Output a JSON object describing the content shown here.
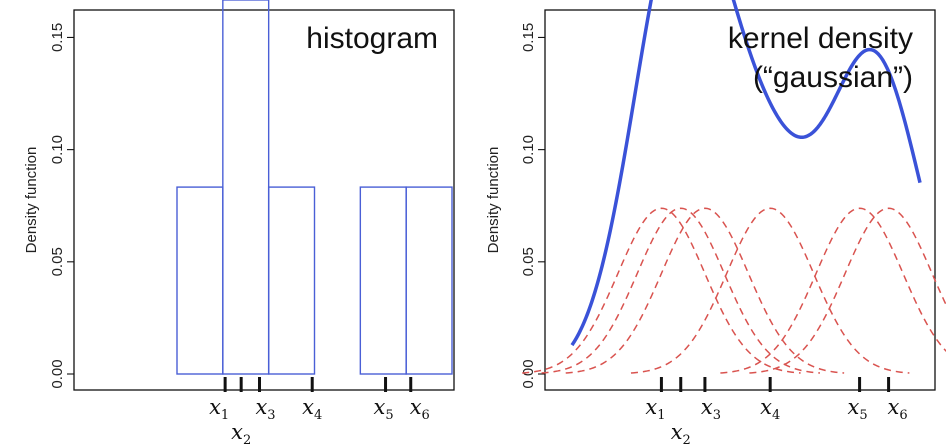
{
  "colors": {
    "histogram": "#4a5fd6",
    "density": "#3a52d8",
    "kernel": "#d9534f",
    "axis": "#111111",
    "frame": "#111111"
  },
  "chart_data": [
    {
      "type": "bar",
      "title": "histogram",
      "ylabel": "Density function",
      "ylim": [
        0,
        0.16
      ],
      "yticks": [
        0.0,
        0.05,
        0.1,
        0.15
      ],
      "ytick_labels": [
        "0.00",
        "0.05",
        "0.10",
        "0.15"
      ],
      "xlim": [
        -3.2,
        4.0
      ],
      "bin_edges": [
        -2,
        -1,
        0,
        1,
        2,
        3,
        4
      ],
      "bins": [
        {
          "x0": -2.0,
          "x1": -1.0,
          "density": 0.0833
        },
        {
          "x0": -1.0,
          "x1": 0.0,
          "density": 0.1667
        },
        {
          "x0": 0.0,
          "x1": 1.0,
          "density": 0.0833
        },
        {
          "x0": 1.0,
          "x1": 2.0,
          "density": 0.0
        },
        {
          "x0": 2.0,
          "x1": 3.0,
          "density": 0.0833
        },
        {
          "x0": 3.0,
          "x1": 4.0,
          "density": 0.0833
        }
      ],
      "samples": [
        {
          "base": "x",
          "sub": "1",
          "x": -0.95
        },
        {
          "base": "x",
          "sub": "2",
          "x": -0.6
        },
        {
          "base": "x",
          "sub": "3",
          "x": -0.2
        },
        {
          "base": "x",
          "sub": "4",
          "x": 0.95
        },
        {
          "base": "x",
          "sub": "5",
          "x": 2.55
        },
        {
          "base": "x",
          "sub": "6",
          "x": 3.1
        }
      ]
    },
    {
      "type": "line",
      "title": "kernel density",
      "subtitle": "(“gaussian”)",
      "ylabel": "Density function",
      "ylim": [
        0,
        0.16
      ],
      "yticks": [
        0.0,
        0.05,
        0.1,
        0.15
      ],
      "ytick_labels": [
        "0.00",
        "0.05",
        "0.10",
        "0.15"
      ],
      "xlim": [
        -2.4,
        4.8
      ],
      "kernel": "gaussian",
      "bandwidth": 0.9,
      "samples": [
        {
          "base": "x",
          "sub": "1",
          "x": -0.55
        },
        {
          "base": "x",
          "sub": "2",
          "x": -0.15
        },
        {
          "base": "x",
          "sub": "3",
          "x": 0.35
        },
        {
          "base": "x",
          "sub": "4",
          "x": 1.7
        },
        {
          "base": "x",
          "sub": "5",
          "x": 3.55
        },
        {
          "base": "x",
          "sub": "6",
          "x": 4.15
        }
      ]
    }
  ]
}
